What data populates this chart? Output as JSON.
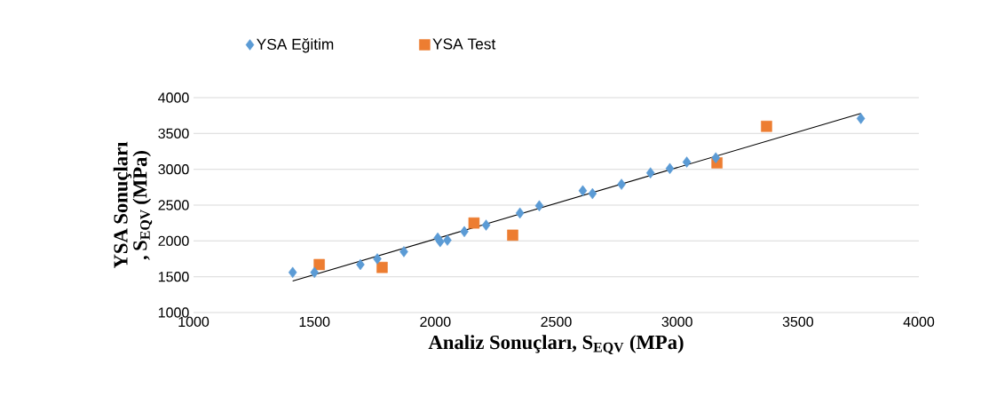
{
  "chart_data": {
    "type": "scatter",
    "xlabel": "Analiz Sonuçları, S$_{EQV}$ (MPa)",
    "ylabel": "YSA Sonuçları , S$_{EQV}$ (MPa)",
    "xlim": [
      1000,
      4000
    ],
    "ylim": [
      1000,
      4000
    ],
    "xticks": [
      1000,
      1500,
      2000,
      2500,
      3000,
      3500,
      4000
    ],
    "yticks": [
      1000,
      1500,
      2000,
      2500,
      3000,
      3500,
      4000
    ],
    "grid": "y",
    "legend": "top",
    "series": [
      {
        "name": "YSA Eğitim",
        "color": "#5b9bd5",
        "marker": "diamond",
        "x": [
          1410,
          1500,
          1690,
          1760,
          1870,
          2010,
          2020,
          2050,
          2120,
          2210,
          2350,
          2430,
          2610,
          2650,
          2770,
          2890,
          2970,
          3040,
          3160,
          3760
        ],
        "values": [
          1560,
          1560,
          1670,
          1750,
          1850,
          2040,
          1990,
          2010,
          2130,
          2220,
          2390,
          2490,
          2700,
          2660,
          2790,
          2950,
          3010,
          3100,
          3160,
          3710
        ]
      },
      {
        "name": "YSA Test",
        "color": "#ed7d31",
        "marker": "square",
        "x": [
          1520,
          1780,
          2160,
          2320,
          3165,
          3370
        ],
        "values": [
          1670,
          1630,
          2250,
          2080,
          3090,
          3600
        ]
      },
      {
        "type": "line",
        "color": "#000000",
        "marker": "none",
        "x": [
          1410,
          3760
        ],
        "values": [
          1440,
          3780
        ]
      }
    ]
  }
}
